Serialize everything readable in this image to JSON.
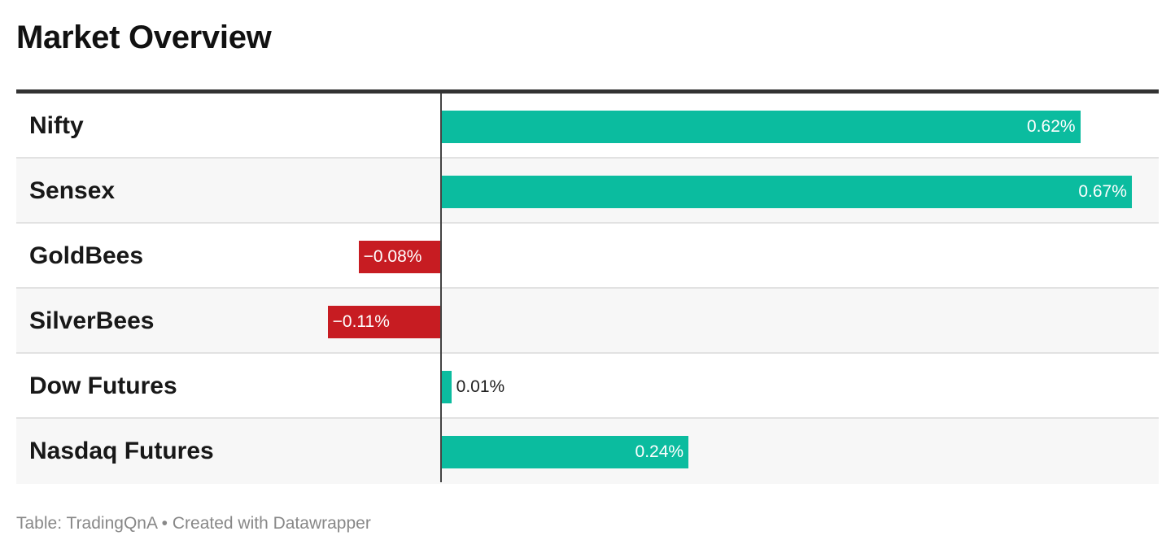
{
  "title": "Market Overview",
  "footer": {
    "source_prefix": "Table:",
    "source": "TradingQnA",
    "separator": "•",
    "credit": "Created with Datawrapper"
  },
  "colors": {
    "positive": "#0bbc9f",
    "negative": "#c71c22"
  },
  "chart_data": {
    "type": "bar",
    "orientation": "horizontal",
    "title": "Market Overview",
    "categories": [
      "Nifty",
      "Sensex",
      "GoldBees",
      "SilverBees",
      "Dow Futures",
      "Nasdaq Futures"
    ],
    "values": [
      0.62,
      0.67,
      -0.08,
      -0.11,
      0.01,
      0.24
    ],
    "value_labels": [
      "0.62%",
      "0.67%",
      "−0.08%",
      "−0.11%",
      "0.01%",
      "0.24%"
    ],
    "unit": "%",
    "xlim": [
      -0.445,
      0.707
    ],
    "grid": false,
    "legend": "none"
  }
}
